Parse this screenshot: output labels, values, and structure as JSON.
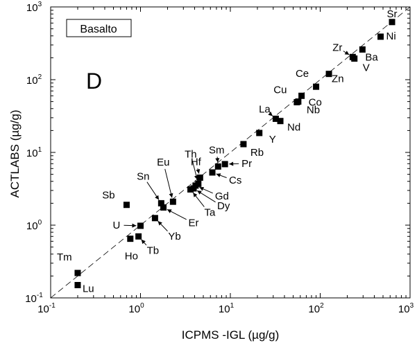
{
  "chart_data": {
    "type": "scatter",
    "xscale": "log",
    "yscale": "log",
    "xlim": [
      0.1,
      1000
    ],
    "ylim": [
      0.1,
      1000
    ],
    "xlabel": "ICPMS -IGL (µg/g)",
    "ylabel": "ACTLABS (µg/g)",
    "panel_label": "D",
    "legend_box": "Basalto",
    "reference_line": "1:1 dashed",
    "tick_labels": [
      "10",
      "-1",
      "10",
      "0",
      "10",
      "1",
      "10",
      "2",
      "10",
      "3"
    ],
    "tick_values": [
      0.1,
      1,
      10,
      100,
      1000
    ],
    "points": [
      {
        "label": "Sr",
        "x": 630,
        "y": 620
      },
      {
        "label": "Ni",
        "x": 470,
        "y": 390
      },
      {
        "label": "Ba",
        "x": 295,
        "y": 260
      },
      {
        "label": "Zr",
        "x": 230,
        "y": 205
      },
      {
        "label": "V",
        "x": 240,
        "y": 195
      },
      {
        "label": "Zn",
        "x": 125,
        "y": 120
      },
      {
        "label": "Ce",
        "x": 90,
        "y": 80
      },
      {
        "label": "Co",
        "x": 62,
        "y": 60
      },
      {
        "label": "Cu",
        "x": 57,
        "y": 50
      },
      {
        "label": "Nb",
        "x": 55,
        "y": 49
      },
      {
        "label": "La",
        "x": 32,
        "y": 29
      },
      {
        "label": "Nd",
        "x": 36,
        "y": 27
      },
      {
        "label": "Y",
        "x": 21,
        "y": 18.5
      },
      {
        "label": "Rb",
        "x": 14,
        "y": 13
      },
      {
        "label": "Pr",
        "x": 8.7,
        "y": 6.9
      },
      {
        "label": "Sm",
        "x": 7.3,
        "y": 6.4
      },
      {
        "label": "Cs",
        "x": 6.3,
        "y": 5.3
      },
      {
        "label": "Hf",
        "x": 4.6,
        "y": 4.5
      },
      {
        "label": "Th",
        "x": 4.4,
        "y": 3.7
      },
      {
        "label": "Gd",
        "x": 4.1,
        "y": 3.5
      },
      {
        "label": "Dy",
        "x": 3.9,
        "y": 3.2
      },
      {
        "label": "Ta",
        "x": 3.6,
        "y": 3.1
      },
      {
        "label": "Eu",
        "x": 2.3,
        "y": 2.1
      },
      {
        "label": "Sn",
        "x": 1.7,
        "y": 2.0
      },
      {
        "label": "Er",
        "x": 1.8,
        "y": 1.75
      },
      {
        "label": "Sb",
        "x": 0.7,
        "y": 1.9
      },
      {
        "label": "Yb",
        "x": 1.45,
        "y": 1.25
      },
      {
        "label": "U",
        "x": 1.0,
        "y": 0.98
      },
      {
        "label": "Tb",
        "x": 0.95,
        "y": 0.7
      },
      {
        "label": "Ho",
        "x": 0.77,
        "y": 0.65
      },
      {
        "label": "Tm",
        "x": 0.2,
        "y": 0.22
      },
      {
        "label": "Lu",
        "x": 0.2,
        "y": 0.15
      }
    ]
  }
}
